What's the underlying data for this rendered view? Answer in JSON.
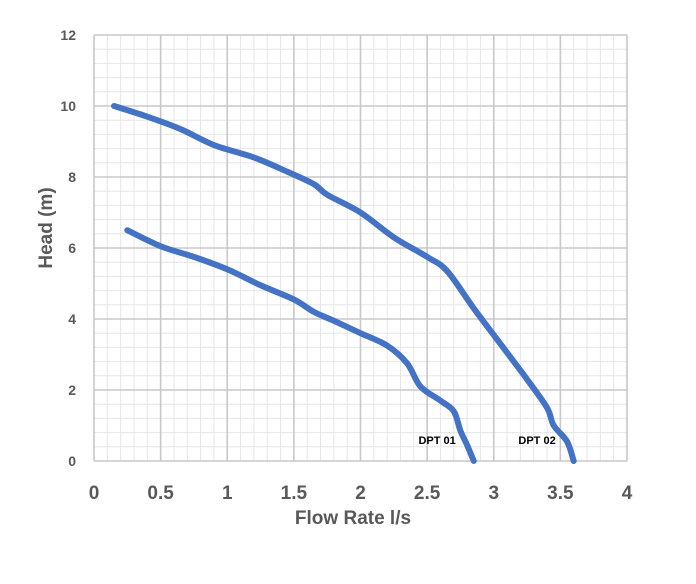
{
  "chart_data": {
    "type": "line",
    "xlabel": "Flow Rate l/s",
    "ylabel": "Head (m)",
    "xlim": [
      0,
      4
    ],
    "ylim": [
      0,
      12
    ],
    "x_ticks": [
      "0",
      "0.5",
      "1",
      "1.5",
      "2",
      "2.5",
      "3",
      "3.5",
      "4"
    ],
    "y_ticks": [
      "0",
      "2",
      "4",
      "6",
      "8",
      "10",
      "12"
    ],
    "grid": true,
    "minor_grid": true,
    "series": [
      {
        "name": "DPT 01",
        "color": "#4472C4",
        "x": [
          0.25,
          0.5,
          0.75,
          1.0,
          1.25,
          1.5,
          1.65,
          1.8,
          2.0,
          2.2,
          2.35,
          2.45,
          2.6,
          2.7,
          2.75,
          2.8,
          2.85
        ],
        "y": [
          6.5,
          6.05,
          5.75,
          5.4,
          4.95,
          4.55,
          4.2,
          3.95,
          3.6,
          3.25,
          2.75,
          2.1,
          1.7,
          1.4,
          0.85,
          0.45,
          0.0
        ]
      },
      {
        "name": "DPT 02",
        "color": "#4472C4",
        "x": [
          0.15,
          0.4,
          0.65,
          0.9,
          1.2,
          1.45,
          1.65,
          1.75,
          2.0,
          2.25,
          2.5,
          2.65,
          2.85,
          3.05,
          3.25,
          3.4,
          3.45,
          3.55,
          3.6
        ],
        "y": [
          10.0,
          9.7,
          9.35,
          8.9,
          8.55,
          8.15,
          7.8,
          7.5,
          7.0,
          6.3,
          5.75,
          5.35,
          4.3,
          3.3,
          2.3,
          1.5,
          1.0,
          0.55,
          0.0
        ]
      }
    ]
  }
}
